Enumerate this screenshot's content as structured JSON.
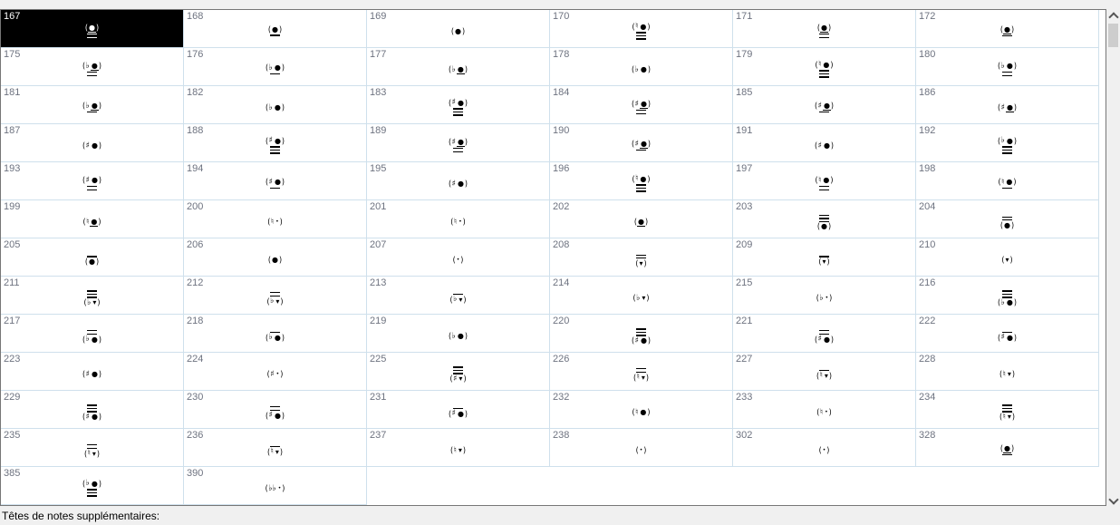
{
  "palette": {
    "page-bg": "#f0f0f0",
    "box-border": "#767676",
    "cell-border": "#cfe0ec",
    "number": "#6e7380",
    "selected-bg": "#000000",
    "selected-fg": "#ffffff",
    "track": "#f0f0f0",
    "thumb": "#cdcdcd",
    "arrow": "#555555",
    "label": "#000000"
  },
  "grid": {
    "columns": 6,
    "selected": "167"
  },
  "head_chars": {
    "n": "●",
    "s": "•",
    "v": "▾"
  },
  "scrollbar": {
    "up_icon": "chevron-up",
    "down_icon": "chevron-down"
  },
  "footer": {
    "label": "Têtes de notes supplémentaires:"
  },
  "cells": [
    {
      "n": "167",
      "acc": "",
      "head": "n",
      "lb": 2,
      "ul": true,
      "sel": true
    },
    {
      "n": "168",
      "acc": "",
      "head": "n",
      "lb": 1
    },
    {
      "n": "169",
      "acc": "",
      "head": "n"
    },
    {
      "n": "170",
      "acc": "♮",
      "head": "n",
      "lb": 3
    },
    {
      "n": "171",
      "acc": "",
      "head": "n",
      "lb": 2,
      "ul": true
    },
    {
      "n": "172",
      "acc": "",
      "head": "n",
      "lb": 1,
      "ul": true
    },
    {
      "n": "175",
      "acc": "♭",
      "head": "n",
      "lb": 2,
      "ul": true
    },
    {
      "n": "176",
      "acc": "♭",
      "head": "n",
      "lb": 1
    },
    {
      "n": "177",
      "acc": "♭",
      "head": "n",
      "ul": true
    },
    {
      "n": "178",
      "acc": "♭",
      "head": "n"
    },
    {
      "n": "179",
      "acc": "♮",
      "head": "n",
      "lb": 3
    },
    {
      "n": "180",
      "acc": "♭",
      "head": "n",
      "lb": 2
    },
    {
      "n": "181",
      "acc": "♭",
      "head": "n",
      "lb": 1,
      "ul": true
    },
    {
      "n": "182",
      "acc": "♭",
      "head": "n"
    },
    {
      "n": "183",
      "acc": "♯",
      "head": "n",
      "lb": 3
    },
    {
      "n": "184",
      "acc": "♯",
      "head": "n",
      "lb": 2,
      "ul": true
    },
    {
      "n": "185",
      "acc": "♯",
      "head": "n",
      "lb": 1,
      "ul": true
    },
    {
      "n": "186",
      "acc": "♯",
      "head": "n",
      "ul": true
    },
    {
      "n": "187",
      "acc": "♯",
      "head": "n"
    },
    {
      "n": "188",
      "acc": "♯",
      "head": "n",
      "lb": 3
    },
    {
      "n": "189",
      "acc": "♯",
      "head": "n",
      "lb": 2,
      "ul": true
    },
    {
      "n": "190",
      "acc": "♯",
      "head": "n",
      "lb": 1,
      "ul": true
    },
    {
      "n": "191",
      "acc": "♯",
      "head": "n"
    },
    {
      "n": "192",
      "acc": "♭",
      "head": "n",
      "lb": 3
    },
    {
      "n": "193",
      "acc": "♯",
      "head": "n",
      "lb": 2
    },
    {
      "n": "194",
      "acc": "♯",
      "head": "n",
      "lb": 1
    },
    {
      "n": "195",
      "acc": "♯",
      "head": "n"
    },
    {
      "n": "196",
      "acc": "♮",
      "head": "n",
      "lb": 3
    },
    {
      "n": "197",
      "acc": "♮",
      "head": "n",
      "lb": 2
    },
    {
      "n": "198",
      "acc": "♮",
      "head": "n",
      "lb": 1
    },
    {
      "n": "199",
      "acc": "♮",
      "head": "n",
      "ul": true
    },
    {
      "n": "200",
      "acc": "♮",
      "head": "s"
    },
    {
      "n": "201",
      "acc": "♮",
      "head": "s"
    },
    {
      "n": "202",
      "acc": "",
      "head": "n",
      "ul": true
    },
    {
      "n": "203",
      "acc": "",
      "head": "n",
      "la": 3
    },
    {
      "n": "204",
      "acc": "",
      "head": "n",
      "la": 2
    },
    {
      "n": "205",
      "acc": "",
      "head": "n",
      "la": 1
    },
    {
      "n": "206",
      "acc": "",
      "head": "n"
    },
    {
      "n": "207",
      "acc": "",
      "head": "s"
    },
    {
      "n": "208",
      "acc": "",
      "head": "v",
      "la": 2
    },
    {
      "n": "209",
      "acc": "",
      "head": "v",
      "la": 1
    },
    {
      "n": "210",
      "acc": "",
      "head": "v"
    },
    {
      "n": "211",
      "acc": "♭",
      "head": "v",
      "la": 3
    },
    {
      "n": "212",
      "acc": "♭",
      "head": "v",
      "la": 2
    },
    {
      "n": "213",
      "acc": "♭",
      "head": "v",
      "la": 1
    },
    {
      "n": "214",
      "acc": "♭",
      "head": "v"
    },
    {
      "n": "215",
      "acc": "♭",
      "head": "s"
    },
    {
      "n": "216",
      "acc": "♭",
      "head": "n",
      "la": 3
    },
    {
      "n": "217",
      "acc": "♭",
      "head": "n",
      "la": 2
    },
    {
      "n": "218",
      "acc": "♭",
      "head": "n",
      "la": 1
    },
    {
      "n": "219",
      "acc": "♭",
      "head": "n"
    },
    {
      "n": "220",
      "acc": "♯",
      "head": "n",
      "la": 3
    },
    {
      "n": "221",
      "acc": "♯",
      "head": "n",
      "la": 2
    },
    {
      "n": "222",
      "acc": "♯",
      "head": "n",
      "la": 1
    },
    {
      "n": "223",
      "acc": "♯",
      "head": "n"
    },
    {
      "n": "224",
      "acc": "♯",
      "head": "s"
    },
    {
      "n": "225",
      "acc": "♯",
      "head": "v",
      "la": 3
    },
    {
      "n": "226",
      "acc": "♮",
      "head": "v",
      "la": 2
    },
    {
      "n": "227",
      "acc": "♮",
      "head": "v",
      "la": 1
    },
    {
      "n": "228",
      "acc": "♮",
      "head": "v"
    },
    {
      "n": "229",
      "acc": "♯",
      "head": "n",
      "la": 3
    },
    {
      "n": "230",
      "acc": "♯",
      "head": "n",
      "la": 2
    },
    {
      "n": "231",
      "acc": "♯",
      "head": "n",
      "la": 1
    },
    {
      "n": "232",
      "acc": "♮",
      "head": "n"
    },
    {
      "n": "233",
      "acc": "♮",
      "head": "s"
    },
    {
      "n": "234",
      "acc": "♮",
      "head": "v",
      "la": 3
    },
    {
      "n": "235",
      "acc": "♮",
      "head": "v",
      "la": 2
    },
    {
      "n": "236",
      "acc": "♮",
      "head": "v",
      "la": 1
    },
    {
      "n": "237",
      "acc": "♮",
      "head": "v"
    },
    {
      "n": "238",
      "acc": "",
      "head": "s"
    },
    {
      "n": "302",
      "acc": "",
      "head": "s"
    },
    {
      "n": "328",
      "acc": "",
      "head": "n",
      "lb": 1,
      "ul": true
    },
    {
      "n": "385",
      "acc": "♭",
      "head": "n",
      "lb": 3
    },
    {
      "n": "390",
      "acc": "♭♭",
      "head": "s"
    }
  ]
}
